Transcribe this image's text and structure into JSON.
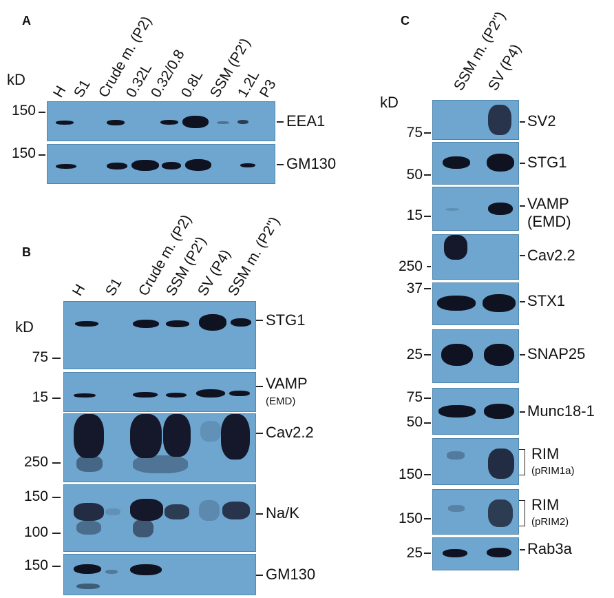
{
  "panel_a": {
    "letter": "A",
    "kd": "kD",
    "lanes": [
      "H",
      "S1",
      "Crude m. (P2)",
      "0.32L",
      "0.32/0.8",
      "0.8L",
      "SSM (P2')",
      "1.2L",
      "P3"
    ],
    "markers": [
      "150",
      "150"
    ],
    "blots": [
      "EEA1",
      "GM130"
    ]
  },
  "panel_b": {
    "letter": "B",
    "kd": "kD",
    "lanes": [
      "H",
      "S1",
      "Crude m. (P2)",
      "SSM (P2')",
      "SV (P4)",
      "SSM m. (P2'')"
    ],
    "markers": [
      "75",
      "15",
      "250",
      "150",
      "100",
      "150"
    ],
    "blots": [
      "STG1",
      "VAMP",
      "Cav2.2",
      "Na/K",
      "GM130"
    ],
    "vamp_sub": "(EMD)"
  },
  "panel_c": {
    "letter": "C",
    "kd": "kD",
    "lanes": [
      "SSM m. (P2'')",
      "SV (P4)"
    ],
    "markers": [
      "75",
      "50",
      "15",
      "250",
      "37",
      "25",
      "75",
      "50",
      "150",
      "150",
      "25"
    ],
    "blots": [
      "SV2",
      "STG1",
      "VAMP",
      "Cav2.2",
      "STX1",
      "SNAP25",
      "Munc18-1",
      "RIM",
      "RIM",
      "Rab3a"
    ],
    "subs": [
      "(EMD)",
      "(pRIM1a)",
      "(pRIM2)"
    ]
  },
  "colors": {
    "membrane": "#6fa6cf",
    "band": "#0f1220"
  }
}
